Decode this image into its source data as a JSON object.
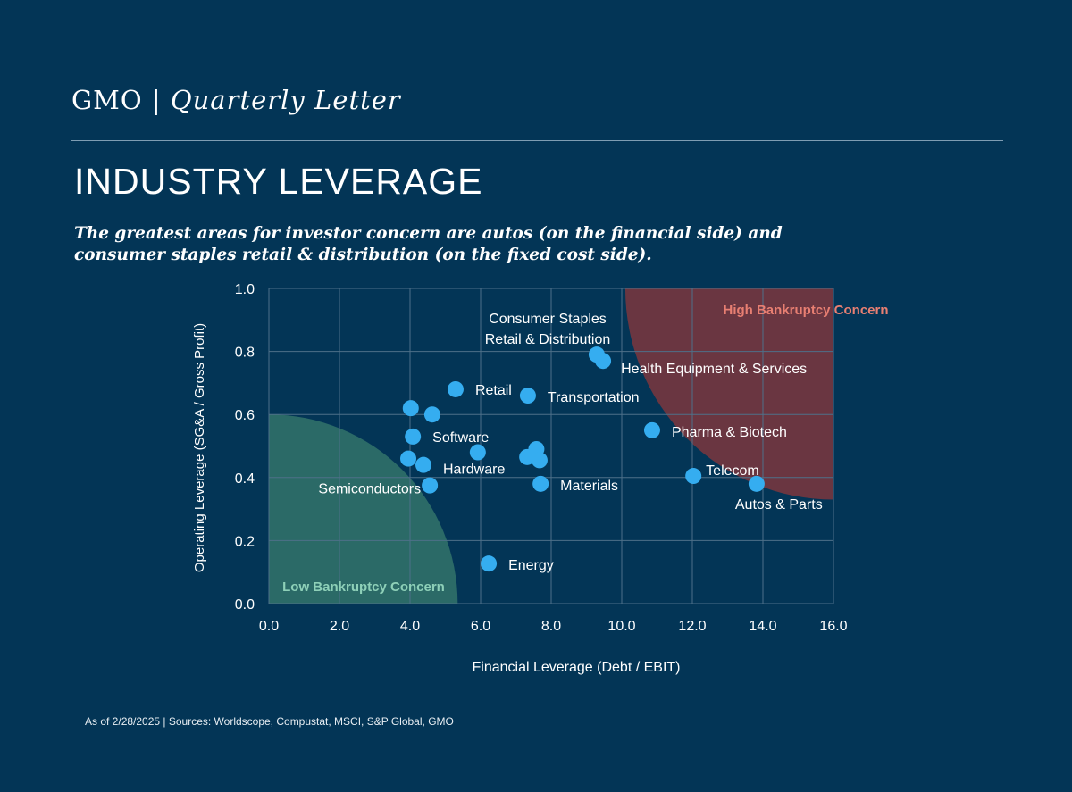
{
  "header": {
    "brand": "GMO",
    "separator": "|",
    "publication": "Quarterly Letter"
  },
  "title": "INDUSTRY LEVERAGE",
  "subtitle": "The greatest areas for investor concern are autos (on the financial side) and consumer staples retail & distribution (on the fixed cost side).",
  "footnote": "As of 2/28/2025 | Sources: Worldscope, Compustat, MSCI, S&P Global, GMO",
  "colors": {
    "background": "#033556",
    "points": "#35adf0",
    "low_region": "#2b6a67",
    "high_region": "#6a3641",
    "high_label": "#e87f72",
    "low_label": "#8ed0b8",
    "grid": "#4e7089"
  },
  "chart_data": {
    "type": "scatter",
    "xlabel": "Financial Leverage (Debt / EBIT)",
    "ylabel": "Operating Leverage (SG&A / Gross Profit)",
    "xlim": [
      0,
      16
    ],
    "ylim": [
      0,
      1.0
    ],
    "xticks": [
      "0.0",
      "2.0",
      "4.0",
      "6.0",
      "8.0",
      "10.0",
      "12.0",
      "14.0",
      "16.0"
    ],
    "yticks": [
      "0.0",
      "0.2",
      "0.4",
      "0.6",
      "0.8",
      "1.0"
    ],
    "grid": true,
    "regions": [
      {
        "label": "Low Bankruptcy Concern",
        "corner": "bottom-left",
        "x_radius": 5.35,
        "y_radius": 0.6
      },
      {
        "label": "High Bankruptcy Concern",
        "corner": "top-right",
        "x_radius": 5.9,
        "y_radius": 0.67
      }
    ],
    "points": [
      {
        "x": 4.02,
        "y": 0.62,
        "label": ""
      },
      {
        "x": 4.63,
        "y": 0.6,
        "label": ""
      },
      {
        "x": 5.29,
        "y": 0.68,
        "label": "Retail"
      },
      {
        "x": 7.34,
        "y": 0.66,
        "label": "Transportation"
      },
      {
        "x": 9.29,
        "y": 0.79,
        "label": "Consumer Staples Retail & Distribution"
      },
      {
        "x": 9.47,
        "y": 0.77,
        "label": "Health Equipment & Services"
      },
      {
        "x": 4.08,
        "y": 0.53,
        "label": "Software"
      },
      {
        "x": 5.92,
        "y": 0.48,
        "label": ""
      },
      {
        "x": 3.95,
        "y": 0.46,
        "label": ""
      },
      {
        "x": 4.38,
        "y": 0.44,
        "label": "Hardware"
      },
      {
        "x": 4.56,
        "y": 0.375,
        "label": "Semiconductors"
      },
      {
        "x": 7.58,
        "y": 0.49,
        "label": ""
      },
      {
        "x": 7.32,
        "y": 0.465,
        "label": ""
      },
      {
        "x": 7.67,
        "y": 0.455,
        "label": ""
      },
      {
        "x": 7.7,
        "y": 0.38,
        "label": "Materials"
      },
      {
        "x": 10.86,
        "y": 0.55,
        "label": "Pharma & Biotech"
      },
      {
        "x": 12.03,
        "y": 0.405,
        "label": "Telecom"
      },
      {
        "x": 13.82,
        "y": 0.38,
        "label": "Autos & Parts"
      },
      {
        "x": 6.23,
        "y": 0.127,
        "label": "Energy"
      }
    ]
  }
}
